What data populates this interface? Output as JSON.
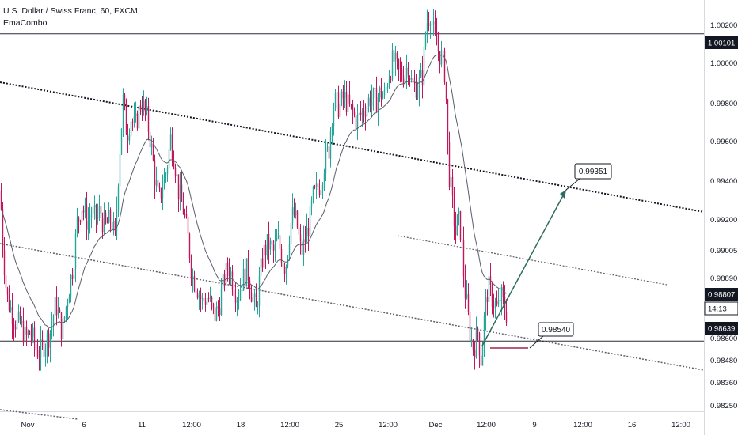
{
  "chart_data": {
    "type": "candlestick",
    "title": "U.S. Dollar / Swiss Franc, 60, FXCM",
    "indicator": "EmaCombo",
    "ylim": [
      0.9819,
      1.0026
    ],
    "y_ticks": [
      "1.00200",
      "1.00000",
      "0.99800",
      "0.99600",
      "0.99400",
      "0.99200",
      "0.99005",
      "0.98890",
      "0.98600",
      "0.98480",
      "0.98360",
      "0.98250"
    ],
    "x_ticks": [
      "Nov",
      "6",
      "11",
      "12:00",
      "18",
      "12:00",
      "25",
      "12:00",
      "Dec",
      "12:00",
      "9",
      "12:00",
      "16",
      "12:00"
    ],
    "price_labels": [
      {
        "value": 1.00101,
        "text": "1.00101",
        "style": "dark"
      },
      {
        "value": 0.98807,
        "text": "0.98807",
        "style": "dark"
      },
      {
        "value": 0.9872,
        "text": "14:13",
        "style": "light"
      },
      {
        "value": 0.98639,
        "text": "0.98639",
        "style": "dark"
      }
    ],
    "horizontal_levels": [
      1.00101,
      0.98639
    ],
    "annotations": [
      {
        "text": "0.99351",
        "value": 0.99351
      },
      {
        "text": "0.98540",
        "value": 0.9854
      }
    ],
    "price_path": [
      [
        0,
        0.9935
      ],
      [
        3,
        0.991
      ],
      [
        8,
        0.9885
      ],
      [
        14,
        0.9878
      ],
      [
        20,
        0.9872
      ],
      [
        25,
        0.9872
      ],
      [
        32,
        0.9865
      ],
      [
        38,
        0.9868
      ],
      [
        45,
        0.986
      ],
      [
        50,
        0.9858
      ],
      [
        55,
        0.9862
      ],
      [
        60,
        0.9865
      ],
      [
        65,
        0.9872
      ],
      [
        70,
        0.9882
      ],
      [
        78,
        0.9868
      ],
      [
        85,
        0.9885
      ],
      [
        92,
        0.99
      ],
      [
        97,
        0.992
      ],
      [
        103,
        0.9928
      ],
      [
        110,
        0.992
      ],
      [
        115,
        0.9925
      ],
      [
        120,
        0.9922
      ],
      [
        125,
        0.9925
      ],
      [
        132,
        0.9918
      ],
      [
        140,
        0.9922
      ],
      [
        145,
        0.9912
      ],
      [
        150,
        0.995
      ],
      [
        155,
        0.9978
      ],
      [
        160,
        0.9962
      ],
      [
        165,
        0.997
      ],
      [
        170,
        0.9965
      ],
      [
        178,
        0.9978
      ],
      [
        185,
        0.997
      ],
      [
        190,
        0.9958
      ],
      [
        195,
        0.9942
      ],
      [
        200,
        0.993
      ],
      [
        205,
        0.9938
      ],
      [
        210,
        0.9945
      ],
      [
        215,
        0.996
      ],
      [
        220,
        0.995
      ],
      [
        225,
        0.9935
      ],
      [
        232,
        0.9925
      ],
      [
        238,
        0.991
      ],
      [
        242,
        0.9895
      ],
      [
        248,
        0.989
      ],
      [
        255,
        0.9882
      ],
      [
        262,
        0.9885
      ],
      [
        270,
        0.9875
      ],
      [
        276,
        0.988
      ],
      [
        282,
        0.9892
      ],
      [
        288,
        0.99
      ],
      [
        295,
        0.989
      ],
      [
        300,
        0.9885
      ],
      [
        305,
        0.9892
      ],
      [
        312,
        0.9898
      ],
      [
        318,
        0.9885
      ],
      [
        323,
        0.9878
      ],
      [
        328,
        0.9895
      ],
      [
        332,
        0.9905
      ],
      [
        338,
        0.991
      ],
      [
        345,
        0.9906
      ],
      [
        350,
        0.9912
      ],
      [
        355,
        0.9905
      ],
      [
        360,
        0.9898
      ],
      [
        366,
        0.9918
      ],
      [
        370,
        0.9925
      ],
      [
        375,
        0.9918
      ],
      [
        380,
        0.9905
      ],
      [
        385,
        0.9912
      ],
      [
        390,
        0.992
      ],
      [
        395,
        0.9932
      ],
      [
        400,
        0.9935
      ],
      [
        405,
        0.994
      ],
      [
        410,
        0.995
      ],
      [
        415,
        0.9955
      ],
      [
        418,
        0.997
      ],
      [
        422,
        0.9978
      ],
      [
        428,
        0.9975
      ],
      [
        434,
        0.998
      ],
      [
        440,
        0.9975
      ],
      [
        445,
        0.9972
      ],
      [
        450,
        0.9968
      ],
      [
        456,
        0.9972
      ],
      [
        462,
        0.9976
      ],
      [
        468,
        0.998
      ],
      [
        474,
        0.9978
      ],
      [
        480,
        0.9982
      ],
      [
        485,
        0.998
      ],
      [
        490,
        0.999
      ],
      [
        496,
        0.9998
      ],
      [
        502,
        0.9992
      ],
      [
        508,
        0.999
      ],
      [
        515,
        0.9995
      ],
      [
        520,
        0.9985
      ],
      [
        527,
        0.9985
      ],
      [
        533,
        0.999
      ],
      [
        538,
        1.0015
      ],
      [
        543,
        1.002
      ],
      [
        548,
        1.0008
      ],
      [
        553,
        1.0002
      ],
      [
        558,
        0.9998
      ],
      [
        562,
        0.999
      ],
      [
        566,
        0.9945
      ],
      [
        568,
        0.994
      ],
      [
        571,
        0.9928
      ],
      [
        575,
        0.9915
      ],
      [
        578,
        0.9922
      ],
      [
        582,
        0.9915
      ],
      [
        586,
        0.989
      ],
      [
        590,
        0.9878
      ],
      [
        594,
        0.9865
      ],
      [
        598,
        0.986
      ],
      [
        603,
        0.9868
      ],
      [
        607,
        0.9855
      ],
      [
        612,
        0.9878
      ],
      [
        616,
        0.989
      ],
      [
        620,
        0.9885
      ],
      [
        624,
        0.9882
      ],
      [
        628,
        0.9878
      ],
      [
        632,
        0.9886
      ],
      [
        636,
        0.988
      ],
      [
        640,
        0.9876
      ]
    ]
  }
}
